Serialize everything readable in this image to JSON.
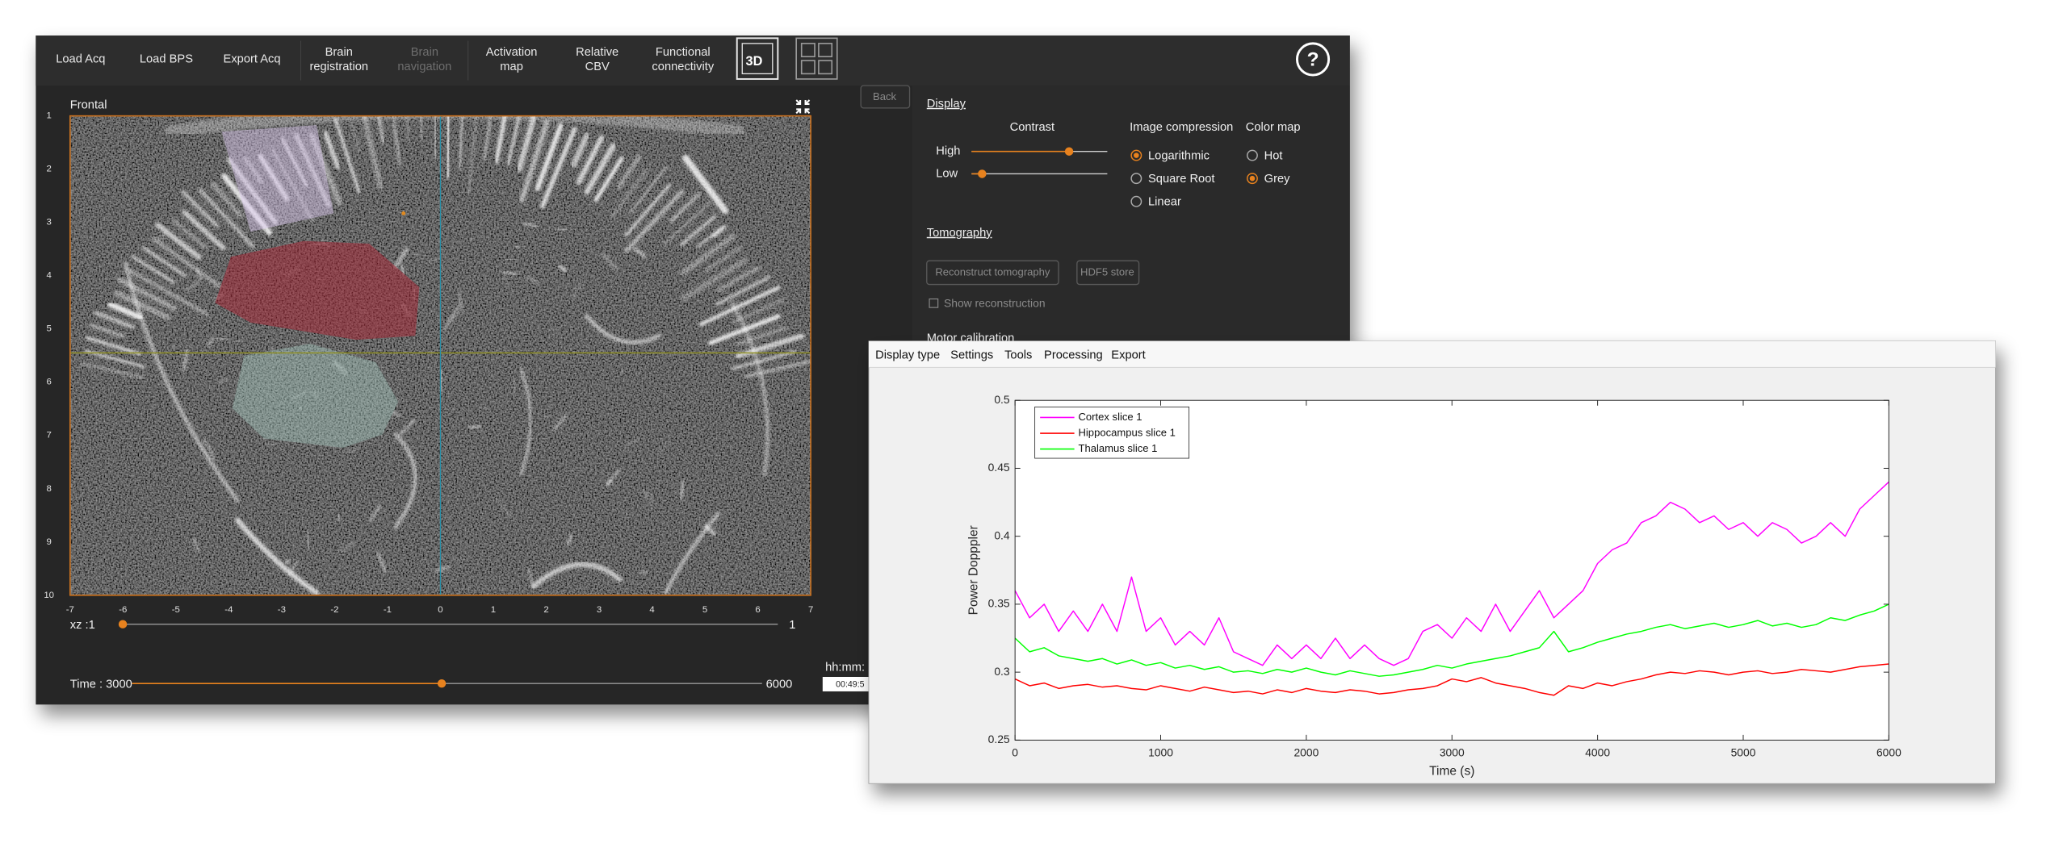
{
  "app": {
    "toolbar": {
      "buttons": [
        {
          "label": [
            "Load Acq"
          ],
          "enabled": true
        },
        {
          "label": [
            "Load BPS"
          ],
          "enabled": true
        },
        {
          "label": [
            "Export Acq"
          ],
          "enabled": true
        },
        {
          "label": [
            "Brain",
            "registration"
          ],
          "enabled": true
        },
        {
          "label": [
            "Brain",
            "navigation"
          ],
          "enabled": false
        },
        {
          "label": [
            "Activation",
            "map"
          ],
          "enabled": true
        },
        {
          "label": [
            "Relative",
            "CBV"
          ],
          "enabled": true
        },
        {
          "label": [
            "Functional",
            "connectivity"
          ],
          "enabled": true
        }
      ],
      "view_3d": "3D",
      "help": "?"
    },
    "viewer": {
      "title": "Frontal",
      "yticks": [
        1,
        2,
        3,
        4,
        5,
        6,
        7,
        8,
        9,
        10
      ],
      "xticks": [
        -7,
        -6,
        -5,
        -4,
        -3,
        -2,
        -1,
        0,
        1,
        2,
        3,
        4,
        5,
        6,
        7
      ],
      "slice_label": "xz :1",
      "slice_max": 1,
      "time_label": "Time : 3000",
      "time_max": 6000,
      "clock_label": "hh:mm:",
      "clock_value": "00:49:5"
    },
    "settings": {
      "back": "Back",
      "display": "Display",
      "contrast": "Contrast",
      "high": "High",
      "low": "Low",
      "compression": "Image compression",
      "compression_options": [
        {
          "label": "Logarithmic",
          "selected": true
        },
        {
          "label": "Square Root",
          "selected": false
        },
        {
          "label": "Linear",
          "selected": false
        }
      ],
      "colormap": "Color map",
      "colormap_options": [
        {
          "label": "Hot",
          "selected": false
        },
        {
          "label": "Grey",
          "selected": true
        }
      ],
      "tomography": "Tomography",
      "reconstruct": "Reconstruct tomography",
      "hdf5": "HDF5 store",
      "show_reconstruction": "Show reconstruction",
      "motor": "Motor calibration"
    },
    "plot_window": {
      "menu": [
        "Display type",
        "Settings",
        "Tools",
        "Processing",
        "Export"
      ]
    }
  },
  "chart_data": {
    "type": "line",
    "xlabel": "Time (s)",
    "ylabel": "Power Dopppler",
    "x": [
      0,
      100,
      200,
      300,
      400,
      500,
      600,
      700,
      800,
      900,
      1000,
      1100,
      1200,
      1300,
      1400,
      1500,
      1600,
      1700,
      1800,
      1900,
      2000,
      2100,
      2200,
      2300,
      2400,
      2500,
      2600,
      2700,
      2800,
      2900,
      3000,
      3100,
      3200,
      3300,
      3400,
      3500,
      3600,
      3700,
      3800,
      3900,
      4000,
      4100,
      4200,
      4300,
      4400,
      4500,
      4600,
      4700,
      4800,
      4900,
      5000,
      5100,
      5200,
      5300,
      5400,
      5500,
      5600,
      5700,
      5800,
      5900,
      6000
    ],
    "series": [
      {
        "name": "Cortex slice 1",
        "color": "#ff00ff",
        "values": [
          0.36,
          0.34,
          0.35,
          0.33,
          0.345,
          0.33,
          0.35,
          0.33,
          0.37,
          0.33,
          0.34,
          0.32,
          0.33,
          0.32,
          0.34,
          0.315,
          0.31,
          0.305,
          0.32,
          0.31,
          0.32,
          0.31,
          0.325,
          0.31,
          0.32,
          0.31,
          0.305,
          0.31,
          0.33,
          0.335,
          0.325,
          0.34,
          0.33,
          0.35,
          0.33,
          0.345,
          0.36,
          0.34,
          0.35,
          0.36,
          0.38,
          0.39,
          0.395,
          0.41,
          0.415,
          0.425,
          0.42,
          0.41,
          0.415,
          0.405,
          0.41,
          0.4,
          0.41,
          0.405,
          0.395,
          0.4,
          0.41,
          0.4,
          0.42,
          0.43,
          0.44
        ]
      },
      {
        "name": "Hippocampus slice 1",
        "color": "#ff0000",
        "values": [
          0.295,
          0.29,
          0.292,
          0.288,
          0.29,
          0.291,
          0.289,
          0.29,
          0.288,
          0.287,
          0.29,
          0.288,
          0.286,
          0.289,
          0.287,
          0.285,
          0.286,
          0.284,
          0.287,
          0.285,
          0.288,
          0.286,
          0.285,
          0.287,
          0.286,
          0.284,
          0.285,
          0.287,
          0.288,
          0.29,
          0.295,
          0.293,
          0.296,
          0.292,
          0.29,
          0.288,
          0.285,
          0.283,
          0.29,
          0.288,
          0.292,
          0.29,
          0.293,
          0.295,
          0.298,
          0.3,
          0.299,
          0.301,
          0.3,
          0.298,
          0.3,
          0.301,
          0.299,
          0.3,
          0.302,
          0.301,
          0.3,
          0.302,
          0.304,
          0.305,
          0.306
        ]
      },
      {
        "name": "Thalamus slice 1",
        "color": "#00ff00",
        "values": [
          0.325,
          0.315,
          0.318,
          0.312,
          0.31,
          0.308,
          0.31,
          0.306,
          0.309,
          0.305,
          0.307,
          0.303,
          0.305,
          0.302,
          0.304,
          0.3,
          0.301,
          0.299,
          0.302,
          0.3,
          0.303,
          0.3,
          0.298,
          0.301,
          0.299,
          0.297,
          0.298,
          0.3,
          0.302,
          0.305,
          0.303,
          0.306,
          0.308,
          0.31,
          0.312,
          0.315,
          0.318,
          0.33,
          0.315,
          0.318,
          0.322,
          0.325,
          0.328,
          0.33,
          0.333,
          0.335,
          0.332,
          0.334,
          0.336,
          0.333,
          0.335,
          0.338,
          0.334,
          0.336,
          0.333,
          0.335,
          0.34,
          0.338,
          0.342,
          0.345,
          0.35
        ]
      }
    ],
    "xlim": [
      0,
      6000
    ],
    "xticks": [
      0,
      1000,
      2000,
      3000,
      4000,
      5000,
      6000
    ],
    "ylim": [
      0.25,
      0.5
    ],
    "yticks": [
      0.25,
      0.3,
      0.35,
      0.4,
      0.45,
      0.5
    ],
    "legend": "upper left"
  }
}
